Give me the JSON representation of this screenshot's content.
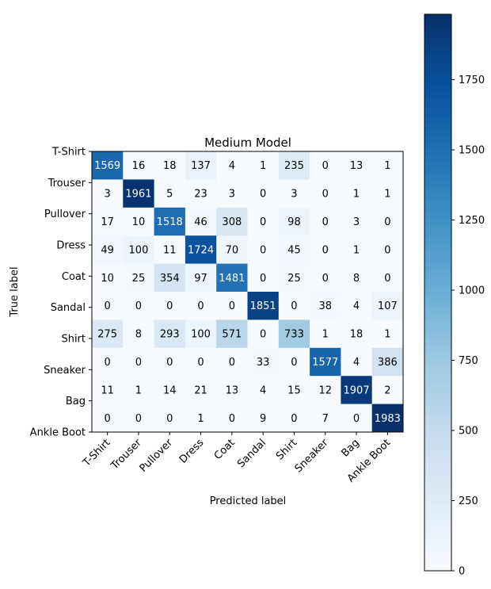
{
  "chart_data": {
    "type": "heatmap",
    "title": "Medium Model",
    "xlabel": "Predicted label",
    "ylabel": "True label",
    "categories": [
      "T-Shirt",
      "Trouser",
      "Pullover",
      "Dress",
      "Coat",
      "Sandal",
      "Shirt",
      "Sneaker",
      "Bag",
      "Ankle Boot"
    ],
    "matrix": [
      [
        1569,
        16,
        18,
        137,
        4,
        1,
        235,
        0,
        13,
        1
      ],
      [
        3,
        1961,
        5,
        23,
        3,
        0,
        3,
        0,
        1,
        1
      ],
      [
        17,
        10,
        1518,
        46,
        308,
        0,
        98,
        0,
        3,
        0
      ],
      [
        49,
        100,
        11,
        1724,
        70,
        0,
        45,
        0,
        1,
        0
      ],
      [
        10,
        25,
        354,
        97,
        1481,
        0,
        25,
        0,
        8,
        0
      ],
      [
        0,
        0,
        0,
        0,
        0,
        1851,
        0,
        38,
        4,
        107
      ],
      [
        275,
        8,
        293,
        100,
        571,
        0,
        733,
        1,
        18,
        1
      ],
      [
        0,
        0,
        0,
        0,
        0,
        33,
        0,
        1577,
        4,
        386
      ],
      [
        11,
        1,
        14,
        21,
        13,
        4,
        15,
        12,
        1907,
        2
      ],
      [
        0,
        0,
        0,
        1,
        0,
        9,
        0,
        7,
        0,
        1983
      ]
    ],
    "color_range": [
      0,
      1983
    ],
    "colorbar_ticks": [
      0,
      250,
      500,
      750,
      1000,
      1250,
      1500,
      1750
    ],
    "colormap": [
      "#f7fbff",
      "#deebf7",
      "#c6dbef",
      "#9ecae1",
      "#6baed6",
      "#4292c6",
      "#2171b5",
      "#08519c",
      "#08306b"
    ]
  }
}
